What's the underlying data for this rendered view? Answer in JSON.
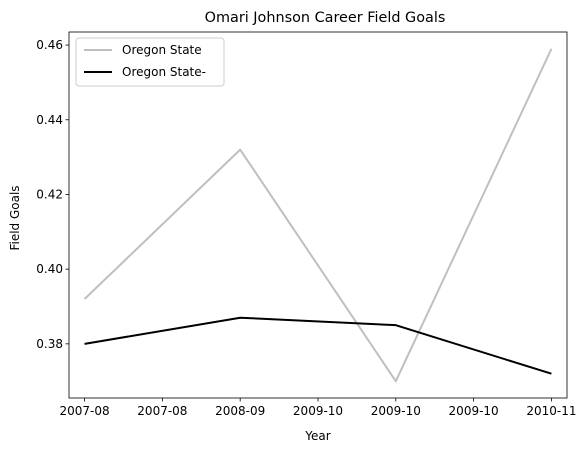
{
  "chart_data": {
    "type": "line",
    "title": "Omari Johnson Career Field Goals",
    "xlabel": "Year",
    "ylabel": "Field Goals",
    "x": [
      0,
      1,
      2,
      3
    ],
    "xlim": [
      -0.1,
      3.1
    ],
    "x_ticks": [
      {
        "value": 0.0,
        "label": "2007-08"
      },
      {
        "value": 0.5,
        "label": "2007-08"
      },
      {
        "value": 1.0,
        "label": "2008-09"
      },
      {
        "value": 1.5,
        "label": "2009-10"
      },
      {
        "value": 2.0,
        "label": "2009-10"
      },
      {
        "value": 2.5,
        "label": "2009-10"
      },
      {
        "value": 3.0,
        "label": "2010-11"
      }
    ],
    "ylim": [
      0.3655,
      0.4635
    ],
    "y_ticks": [
      {
        "value": 0.38,
        "label": "0.38"
      },
      {
        "value": 0.4,
        "label": "0.40"
      },
      {
        "value": 0.42,
        "label": "0.42"
      },
      {
        "value": 0.44,
        "label": "0.44"
      },
      {
        "value": 0.46,
        "label": "0.46"
      }
    ],
    "series": [
      {
        "name": "Oregon State",
        "values": [
          0.392,
          0.432,
          0.37,
          0.459
        ],
        "color": "#bfbfbf"
      },
      {
        "name": "Oregon State-",
        "values": [
          0.38,
          0.387,
          0.385,
          0.372
        ],
        "color": "#000000"
      }
    ],
    "grid": false,
    "legend": "top-left"
  }
}
